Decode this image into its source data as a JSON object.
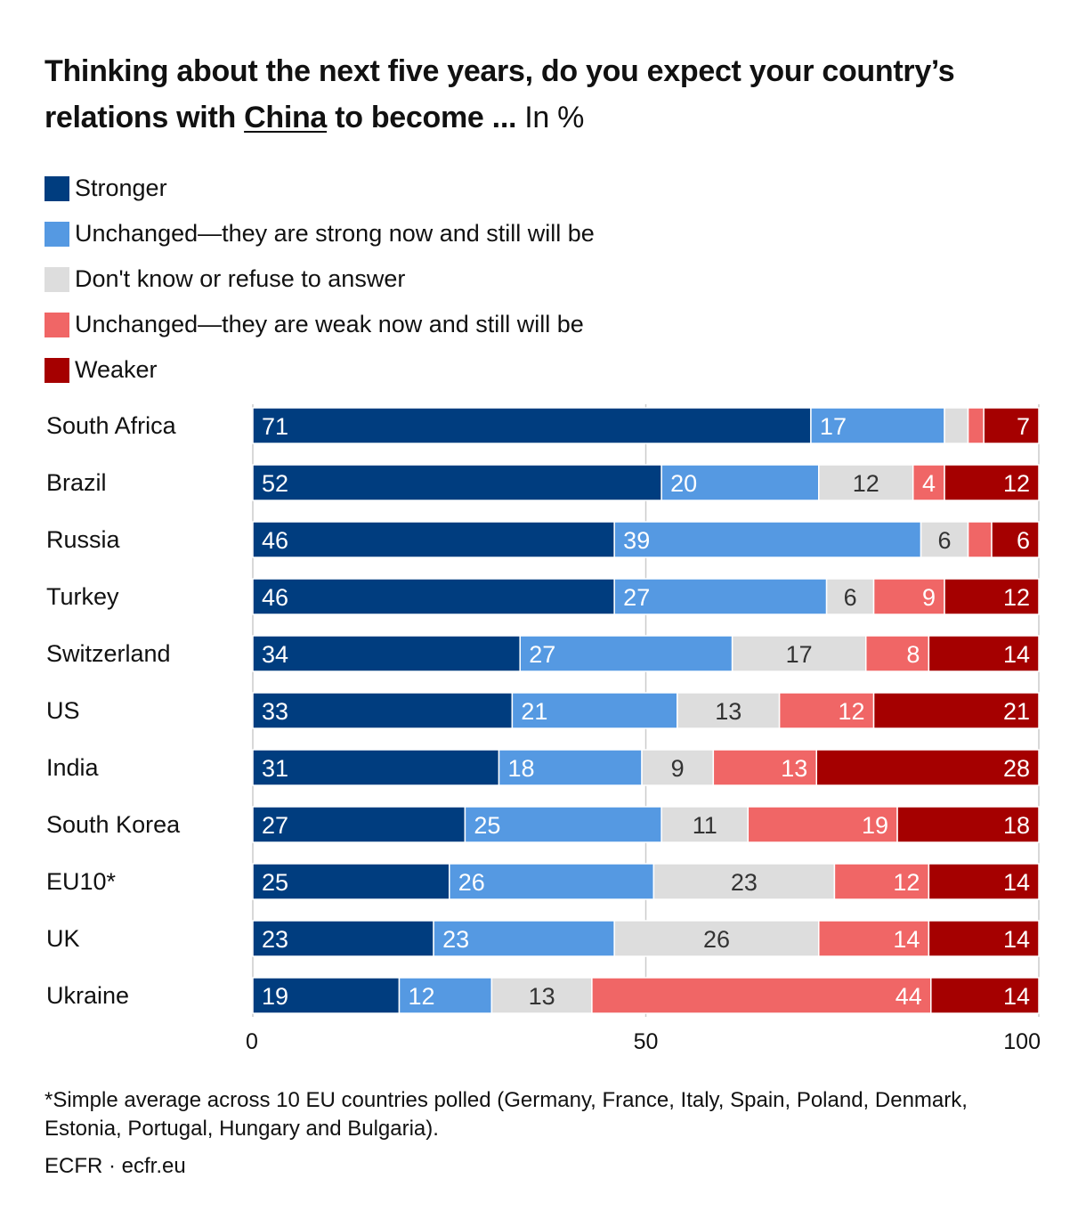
{
  "title": {
    "part1": "Thinking about the next five years, do you expect your country’s relations with ",
    "underlined": "China",
    "part2": " to become ...",
    "unit": " In %"
  },
  "colors": {
    "Stronger": "#003d7f",
    "Unchanged—they are strong now and still will be": "#5599e2",
    "Don't know or refuse to answer": "#dddddd",
    "Unchanged—they are weak now and still will be": "#f06666",
    "Weaker": "#a50000"
  },
  "legend": [
    "Stronger",
    "Unchanged—they are strong now and still will be",
    "Don't know or refuse to answer",
    "Unchanged—they are weak now and still will be",
    "Weaker"
  ],
  "chart_data": {
    "type": "bar",
    "orientation": "horizontal",
    "stacked": true,
    "categories": [
      "South Africa",
      "Brazil",
      "Russia",
      "Turkey",
      "Switzerland",
      "US",
      "India",
      "South Korea",
      "EU10*",
      "UK",
      "Ukraine"
    ],
    "series": [
      {
        "name": "Stronger",
        "values": [
          71,
          52,
          46,
          46,
          34,
          33,
          31,
          27,
          25,
          23,
          19
        ]
      },
      {
        "name": "Unchanged—they are strong now and still will be",
        "values": [
          17,
          20,
          39,
          27,
          27,
          21,
          18,
          25,
          26,
          23,
          12
        ]
      },
      {
        "name": "Don't know or refuse to answer",
        "values": [
          3,
          12,
          6,
          6,
          17,
          13,
          9,
          11,
          23,
          26,
          13
        ]
      },
      {
        "name": "Unchanged—they are weak now and still will be",
        "values": [
          2,
          4,
          3,
          9,
          8,
          12,
          13,
          19,
          12,
          14,
          44
        ]
      },
      {
        "name": "Weaker",
        "values": [
          7,
          12,
          6,
          12,
          14,
          21,
          28,
          18,
          14,
          14,
          14
        ]
      }
    ],
    "label_min_value": 4,
    "xlim": [
      0,
      100
    ],
    "xticks": [
      0,
      50,
      100
    ],
    "grid": true,
    "legend_position": "top-left"
  },
  "footnote": "*Simple average across 10 EU countries polled (Germany, France, Italy, Spain, Poland, Denmark, Estonia, Portugal, Hungary and Bulgaria).",
  "source": "ECFR · ecfr.eu"
}
